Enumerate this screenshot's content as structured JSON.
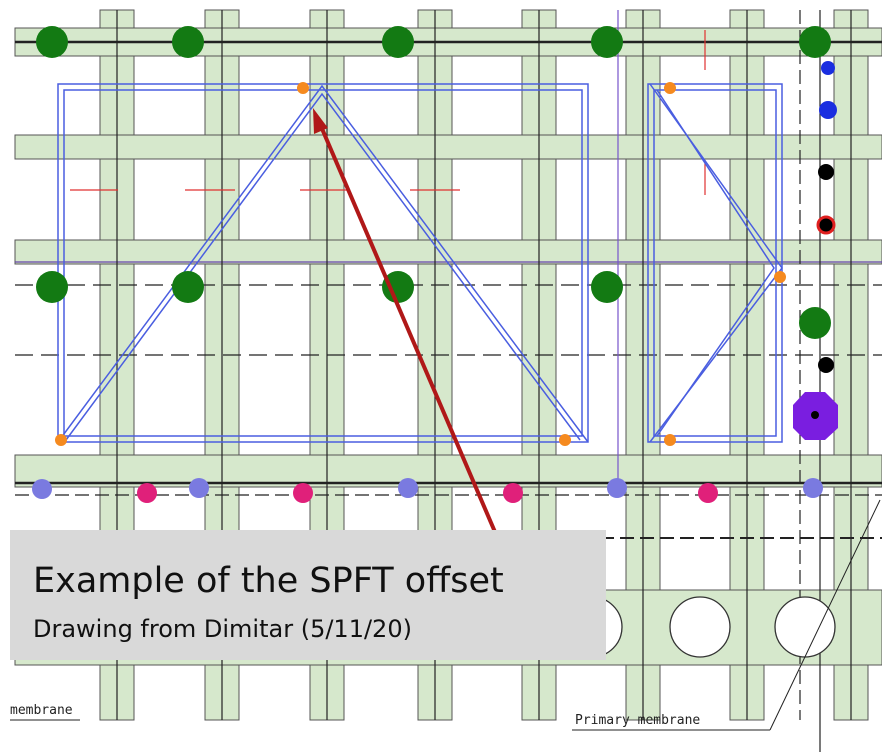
{
  "annotation": {
    "title": "Example of the SPFT offset",
    "subtitle": "Drawing from Dimitar (5/11/20)"
  },
  "labels": {
    "left": "membrane",
    "primary": "Primary membrane"
  }
}
